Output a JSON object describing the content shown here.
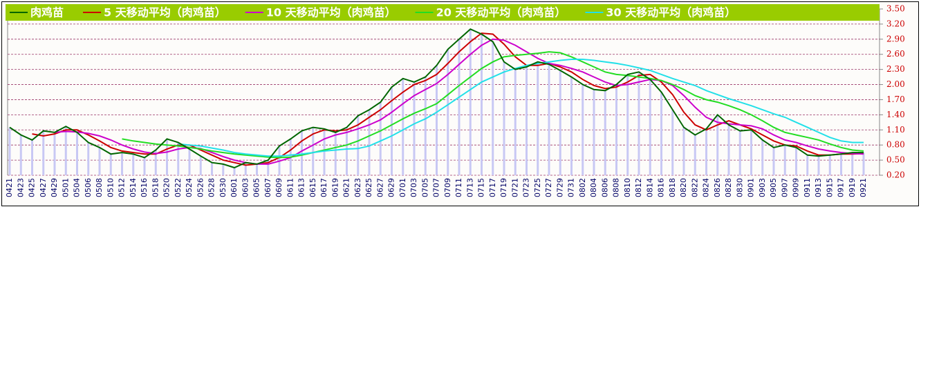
{
  "chart_data": {
    "type": "line",
    "categories": [
      "0421",
      "0423",
      "0425",
      "0427",
      "0429",
      "0501",
      "0504",
      "0506",
      "0508",
      "0510",
      "0512",
      "0514",
      "0516",
      "0518",
      "0520",
      "0522",
      "0524",
      "0526",
      "0528",
      "0530",
      "0601",
      "0603",
      "0605",
      "0607",
      "0609",
      "0611",
      "0613",
      "0615",
      "0617",
      "0619",
      "0621",
      "0623",
      "0625",
      "0627",
      "0629",
      "0701",
      "0703",
      "0705",
      "0707",
      "0709",
      "0711",
      "0713",
      "0715",
      "0717",
      "0719",
      "0721",
      "0723",
      "0725",
      "0727",
      "0729",
      "0731",
      "0802",
      "0804",
      "0806",
      "0808",
      "0810",
      "0812",
      "0814",
      "0816",
      "0818",
      "0820",
      "0822",
      "0824",
      "0826",
      "0828",
      "0830",
      "0901",
      "0903",
      "0905",
      "0907",
      "0909",
      "0911",
      "0913",
      "0915",
      "0917",
      "0919",
      "0921"
    ],
    "series": [
      {
        "name": "肉鸡苗",
        "color": "#006600",
        "values": [
          1.15,
          1.0,
          0.9,
          1.08,
          1.05,
          1.17,
          1.05,
          0.85,
          0.75,
          0.62,
          0.65,
          0.62,
          0.55,
          0.7,
          0.92,
          0.85,
          0.72,
          0.58,
          0.45,
          0.42,
          0.35,
          0.45,
          0.42,
          0.5,
          0.78,
          0.92,
          1.08,
          1.15,
          1.12,
          1.05,
          1.15,
          1.38,
          1.5,
          1.65,
          1.95,
          2.12,
          2.05,
          2.15,
          2.38,
          2.7,
          2.9,
          3.1,
          3.0,
          2.85,
          2.45,
          2.3,
          2.35,
          2.45,
          2.4,
          2.28,
          2.15,
          2.0,
          1.9,
          1.88,
          2.0,
          2.2,
          2.25,
          2.1,
          1.85,
          1.5,
          1.15,
          1.0,
          1.12,
          1.4,
          1.2,
          1.08,
          1.1,
          0.9,
          0.75,
          0.8,
          0.75,
          0.6,
          0.58,
          0.6,
          0.62,
          0.65,
          0.65
        ]
      },
      {
        "name": "5 天移动平均（肉鸡苗）",
        "color": "#cc0000",
        "values": [
          null,
          null,
          1.02,
          0.98,
          1.02,
          1.1,
          1.1,
          1.0,
          0.88,
          0.75,
          0.68,
          0.65,
          0.62,
          0.62,
          0.72,
          0.8,
          0.8,
          0.7,
          0.6,
          0.5,
          0.45,
          0.4,
          0.42,
          0.45,
          0.55,
          0.7,
          0.88,
          1.02,
          1.1,
          1.08,
          1.1,
          1.2,
          1.35,
          1.5,
          1.68,
          1.85,
          2.0,
          2.08,
          2.2,
          2.42,
          2.65,
          2.85,
          3.02,
          3.0,
          2.8,
          2.55,
          2.38,
          2.38,
          2.42,
          2.35,
          2.25,
          2.1,
          1.98,
          1.92,
          1.95,
          2.05,
          2.18,
          2.2,
          2.05,
          1.8,
          1.45,
          1.2,
          1.1,
          1.2,
          1.28,
          1.2,
          1.12,
          1.0,
          0.88,
          0.8,
          0.78,
          0.68,
          0.6,
          0.6,
          0.62,
          0.62,
          0.63
        ]
      },
      {
        "name": "10 天移动平均（肉鸡苗）",
        "color": "#cc00cc",
        "values": [
          null,
          null,
          null,
          null,
          1.05,
          1.07,
          1.06,
          1.03,
          0.98,
          0.9,
          0.8,
          0.72,
          0.66,
          0.63,
          0.66,
          0.72,
          0.75,
          0.73,
          0.65,
          0.57,
          0.5,
          0.45,
          0.42,
          0.42,
          0.48,
          0.55,
          0.68,
          0.8,
          0.92,
          1.0,
          1.05,
          1.12,
          1.2,
          1.3,
          1.45,
          1.62,
          1.78,
          1.9,
          2.02,
          2.2,
          2.4,
          2.6,
          2.78,
          2.9,
          2.88,
          2.78,
          2.65,
          2.52,
          2.42,
          2.38,
          2.32,
          2.25,
          2.15,
          2.05,
          1.98,
          2.0,
          2.05,
          2.1,
          2.08,
          1.98,
          1.78,
          1.55,
          1.35,
          1.25,
          1.22,
          1.2,
          1.18,
          1.12,
          1.0,
          0.9,
          0.85,
          0.78,
          0.72,
          0.68,
          0.65,
          0.63,
          0.62
        ]
      },
      {
        "name": "20 天移动平均（肉鸡苗）",
        "color": "#22dd22",
        "values": [
          null,
          null,
          null,
          null,
          null,
          null,
          null,
          null,
          null,
          null,
          0.92,
          0.88,
          0.85,
          0.82,
          0.8,
          0.78,
          0.75,
          0.72,
          0.68,
          0.65,
          0.62,
          0.6,
          0.58,
          0.56,
          0.55,
          0.56,
          0.6,
          0.65,
          0.7,
          0.75,
          0.8,
          0.88,
          0.98,
          1.08,
          1.2,
          1.32,
          1.43,
          1.52,
          1.62,
          1.8,
          1.98,
          2.15,
          2.32,
          2.45,
          2.55,
          2.58,
          2.6,
          2.62,
          2.65,
          2.63,
          2.55,
          2.45,
          2.35,
          2.25,
          2.2,
          2.18,
          2.15,
          2.12,
          2.08,
          2.0,
          1.9,
          1.78,
          1.7,
          1.65,
          1.58,
          1.5,
          1.4,
          1.28,
          1.15,
          1.05,
          1.0,
          0.95,
          0.9,
          0.82,
          0.75,
          0.7,
          0.68
        ]
      },
      {
        "name": "30 天移动平均（肉鸡苗）",
        "color": "#22e0e8",
        "values": [
          null,
          null,
          null,
          null,
          null,
          null,
          null,
          null,
          null,
          null,
          null,
          null,
          null,
          null,
          null,
          0.82,
          0.8,
          0.78,
          0.74,
          0.7,
          0.65,
          0.62,
          0.6,
          0.58,
          0.58,
          0.6,
          0.62,
          0.65,
          0.68,
          0.7,
          0.72,
          0.73,
          0.78,
          0.88,
          0.98,
          1.1,
          1.22,
          1.32,
          1.45,
          1.6,
          1.75,
          1.9,
          2.05,
          2.15,
          2.25,
          2.32,
          2.38,
          2.42,
          2.45,
          2.48,
          2.5,
          2.5,
          2.48,
          2.45,
          2.42,
          2.38,
          2.33,
          2.28,
          2.2,
          2.12,
          2.05,
          1.98,
          1.88,
          1.8,
          1.72,
          1.65,
          1.58,
          1.5,
          1.42,
          1.35,
          1.25,
          1.15,
          1.05,
          0.95,
          0.88,
          0.85,
          0.85
        ]
      }
    ],
    "ylim": [
      0.2,
      3.5
    ],
    "yticks": [
      {
        "value": 0.2,
        "label": "0.20"
      },
      {
        "value": 0.5,
        "label": "0.50"
      },
      {
        "value": 0.8,
        "label": "0.80"
      },
      {
        "value": 1.1,
        "label": "1.10"
      },
      {
        "value": 1.4,
        "label": "1.40"
      },
      {
        "value": 1.7,
        "label": "1.70"
      },
      {
        "value": 2.0,
        "label": "2.00"
      },
      {
        "value": 2.3,
        "label": "2.30"
      },
      {
        "value": 2.6,
        "label": "2.60"
      },
      {
        "value": 2.9,
        "label": "2.90"
      },
      {
        "value": 3.2,
        "label": "3.20"
      },
      {
        "value": 3.5,
        "label": "3.50"
      }
    ],
    "grid": true,
    "legend": "top",
    "bars": true,
    "bar_color": "#c8c8f4",
    "legend_color": "#99cc00"
  }
}
